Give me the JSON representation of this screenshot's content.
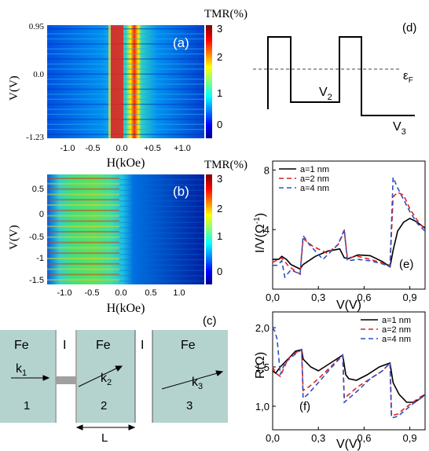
{
  "panel_a": {
    "label": "(a)",
    "colorbar_title": "TMR(%)",
    "colorbar_ticks": [
      "3",
      "2",
      "1",
      "0"
    ],
    "y_ticks": [
      "0.95",
      "0.0",
      "-1.23"
    ],
    "x_ticks": [
      "-1.0",
      "-0.5",
      "0.0",
      "+0.5",
      "+1.0"
    ],
    "ylabel": "V(V)",
    "xlabel": "H(kOe)"
  },
  "panel_b": {
    "label": "(b)",
    "colorbar_title": "TMR(%)",
    "colorbar_ticks": [
      "3",
      "2",
      "1",
      "0"
    ],
    "y_ticks": [
      "0.5",
      "0",
      "-0.5",
      "-1",
      "-1.5"
    ],
    "x_ticks": [
      "-1.0",
      "-0.5",
      "0.0",
      "0.5",
      "1.0"
    ],
    "ylabel": "V(V)",
    "xlabel": "H(kOe)"
  },
  "panel_c": {
    "label": "(c)",
    "regions": [
      {
        "material": "Fe",
        "k": "k",
        "k_sub": "1",
        "index": "1"
      },
      {
        "material": "Fe",
        "k": "k",
        "k_sub": "2",
        "index": "2"
      },
      {
        "material": "Fe",
        "k": "k",
        "k_sub": "3",
        "index": "3"
      }
    ],
    "barriers": [
      "I",
      "I"
    ],
    "length_label": "L"
  },
  "panel_d": {
    "label": "(d)",
    "fermi_label": "ε",
    "fermi_sub": "F",
    "v2": "V",
    "v2_sub": "2",
    "v3": "V",
    "v3_sub": "3"
  },
  "chart_data": [
    {
      "type": "line",
      "panel": "(e)",
      "xlabel": "V(V)",
      "ylabel": "I/V(Ω",
      "ylabel_sup": "-1",
      "ylabel_close": ")",
      "xlim": [
        0,
        1.0
      ],
      "ylim": [
        0,
        8.6
      ],
      "x_ticks": [
        "0,0",
        "0,3",
        "0,6",
        "0,9"
      ],
      "x_tick_values": [
        0,
        0.3,
        0.6,
        0.9
      ],
      "y_ticks": [
        "4",
        "8"
      ],
      "y_tick_values": [
        4,
        8
      ],
      "legend_position": "top-left",
      "series": [
        {
          "name": "a=1 nm",
          "color": "#000000",
          "dash": "solid",
          "x": [
            0,
            0.04,
            0.06,
            0.09,
            0.12,
            0.18,
            0.2,
            0.28,
            0.36,
            0.44,
            0.47,
            0.5,
            0.56,
            0.64,
            0.72,
            0.77,
            0.79,
            0.82,
            0.86,
            0.9,
            0.94,
            1.0
          ],
          "y": [
            2.0,
            2.0,
            2.2,
            2.0,
            1.65,
            1.35,
            1.65,
            2.2,
            2.55,
            2.7,
            2.1,
            2.05,
            2.3,
            2.25,
            1.85,
            1.5,
            2.6,
            3.9,
            4.5,
            4.75,
            4.55,
            4.1
          ]
        },
        {
          "name": "a=2 nm",
          "color": "#e02020",
          "dash": "6,4",
          "x": [
            0,
            0.03,
            0.06,
            0.1,
            0.15,
            0.18,
            0.2,
            0.26,
            0.36,
            0.43,
            0.47,
            0.49,
            0.56,
            0.64,
            0.72,
            0.77,
            0.79,
            0.82,
            0.86,
            0.9,
            0.95,
            1.0
          ],
          "y": [
            1.8,
            1.95,
            2.1,
            1.6,
            1.2,
            1.0,
            3.4,
            2.9,
            2.4,
            3.0,
            3.9,
            2.1,
            2.2,
            2.0,
            1.75,
            1.6,
            6.2,
            6.5,
            6.3,
            5.4,
            4.6,
            4.0
          ]
        },
        {
          "name": "a=4 nm",
          "color": "#3050c0",
          "dash": "6,4",
          "x": [
            0,
            0.03,
            0.06,
            0.08,
            0.12,
            0.18,
            0.2,
            0.24,
            0.33,
            0.43,
            0.47,
            0.49,
            0.56,
            0.64,
            0.72,
            0.77,
            0.79,
            0.82,
            0.86,
            0.9,
            0.95,
            1.0
          ],
          "y": [
            1.6,
            1.6,
            1.9,
            0.8,
            1.3,
            1.0,
            3.6,
            3.0,
            2.0,
            3.0,
            4.0,
            1.9,
            2.0,
            1.9,
            1.7,
            1.5,
            7.5,
            6.8,
            6.0,
            5.2,
            4.4,
            3.9
          ]
        }
      ]
    },
    {
      "type": "line",
      "panel": "(f)",
      "xlabel": "V(V)",
      "ylabel": "R(Ω)",
      "xlim": [
        0,
        1.0
      ],
      "ylim": [
        0.7,
        2.2
      ],
      "x_ticks": [
        "0,0",
        "0,3",
        "0,6",
        "0,9"
      ],
      "x_tick_values": [
        0,
        0.3,
        0.6,
        0.9
      ],
      "y_ticks": [
        "1,0",
        "1,5",
        "2,0"
      ],
      "y_tick_values": [
        1.0,
        1.5,
        2.0
      ],
      "legend_position": "top-right",
      "series": [
        {
          "name": "a=1 nm",
          "color": "#000000",
          "dash": "solid",
          "x": [
            0,
            0.02,
            0.05,
            0.1,
            0.15,
            0.19,
            0.2,
            0.25,
            0.3,
            0.38,
            0.46,
            0.48,
            0.5,
            0.55,
            0.62,
            0.7,
            0.77,
            0.79,
            0.83,
            0.88,
            0.93,
            0.97,
            1.0
          ],
          "y": [
            1.45,
            1.42,
            1.5,
            1.6,
            1.7,
            1.72,
            1.6,
            1.5,
            1.45,
            1.55,
            1.65,
            1.4,
            1.35,
            1.33,
            1.4,
            1.5,
            1.55,
            1.3,
            1.15,
            1.05,
            1.05,
            1.1,
            1.15
          ]
        },
        {
          "name": "a=2 nm",
          "color": "#e02020",
          "dash": "6,4",
          "x": [
            0,
            0.02,
            0.05,
            0.1,
            0.15,
            0.19,
            0.2,
            0.24,
            0.3,
            0.38,
            0.46,
            0.47,
            0.5,
            0.56,
            0.64,
            0.72,
            0.77,
            0.78,
            0.82,
            0.87,
            0.92,
            0.97,
            1.0
          ],
          "y": [
            1.5,
            1.42,
            1.38,
            1.6,
            1.68,
            1.72,
            1.2,
            1.25,
            1.35,
            1.5,
            1.65,
            1.1,
            1.15,
            1.25,
            1.35,
            1.45,
            1.55,
            0.88,
            0.9,
            0.98,
            1.05,
            1.12,
            1.15
          ]
        },
        {
          "name": "a=4 nm",
          "color": "#3050c0",
          "dash": "6,4",
          "x": [
            0,
            0.015,
            0.03,
            0.05,
            0.08,
            0.12,
            0.16,
            0.19,
            0.2,
            0.23,
            0.3,
            0.38,
            0.46,
            0.47,
            0.5,
            0.56,
            0.64,
            0.72,
            0.77,
            0.78,
            0.82,
            0.87,
            0.92,
            0.97,
            1.0
          ],
          "y": [
            2.0,
            1.95,
            1.85,
            1.4,
            1.55,
            1.62,
            1.68,
            1.72,
            1.1,
            1.15,
            1.3,
            1.48,
            1.65,
            1.05,
            1.1,
            1.2,
            1.35,
            1.45,
            1.55,
            0.85,
            0.87,
            0.95,
            1.03,
            1.1,
            1.15
          ]
        }
      ]
    }
  ]
}
